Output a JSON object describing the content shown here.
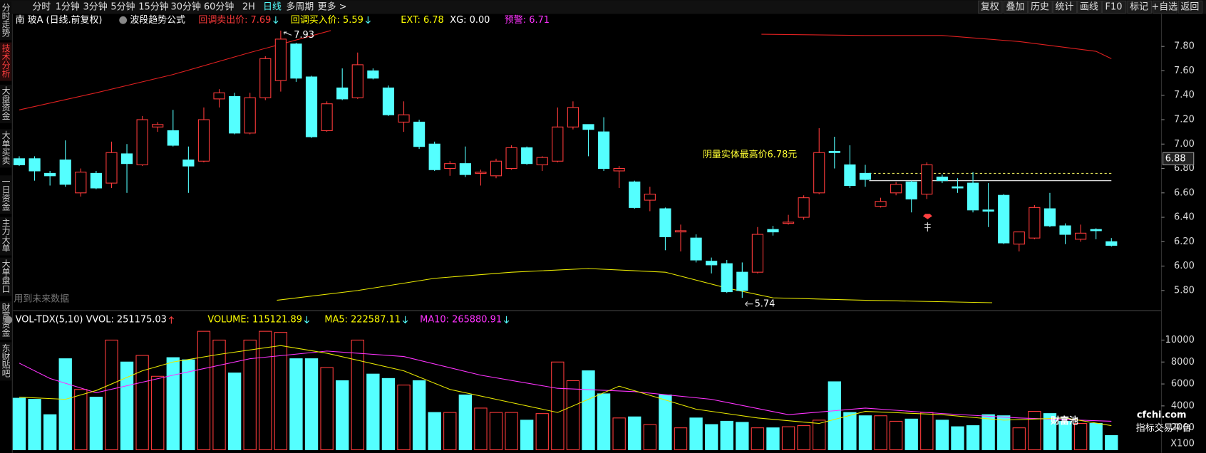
{
  "toolbar": {
    "tabs": [
      "分时",
      "1分钟",
      "3分钟",
      "5分钟",
      "15分钟",
      "30分钟",
      "60分钟",
      "2H",
      "日线",
      "多周期",
      "更多 >"
    ],
    "active": 8,
    "buttons": [
      "复权",
      "叠加",
      "历史",
      "统计",
      "画线",
      "F10",
      "标记",
      "+自选",
      "返回"
    ]
  },
  "sidebar": {
    "tabs": [
      "分时走势",
      "技术分析",
      "大盘资金",
      "大单买卖",
      "一日资金",
      "主力大单",
      "大单盘口",
      "财富资金",
      "东财贴吧"
    ],
    "active": 1
  },
  "price_header": {
    "stock": "南 玻A (日线.前复权)",
    "formula": "波段趋势公式",
    "items": [
      {
        "text": "回调卖出价: 7.69",
        "color": "#ff3b3b",
        "arrow": true
      },
      {
        "text": "回调买入价: 5.59",
        "color": "#ffff00",
        "arrow": true
      },
      {
        "text": "EXT: 6.78",
        "color": "#ffff00"
      },
      {
        "text": "XG: 0.00",
        "color": "#ffffff"
      },
      {
        "text": "预警: 6.71",
        "color": "#ff33ff"
      }
    ]
  },
  "volume_header": {
    "items": [
      {
        "text": "VOL-TDX(5,10) VVOL: 251175.03",
        "color": "#ffffff",
        "arrow": "up"
      },
      {
        "text": "VOLUME: 115121.89",
        "color": "#ffff00",
        "arrow": "down"
      },
      {
        "text": "MA5: 222587.11",
        "color": "#ffff00",
        "arrow": "down"
      },
      {
        "text": "MA10: 265880.91",
        "color": "#ff33ff",
        "arrow": "down"
      }
    ]
  },
  "watermark": {
    "brand": "财富池",
    "site": "cfchi.com",
    "slogan": "指标交易平台"
  },
  "chart_data": [
    {
      "type": "candlestick",
      "up_color": "#ff3b3b",
      "down_color": "#54ffff",
      "open": [
        6.88,
        6.88,
        6.76,
        6.87,
        6.6,
        6.76,
        6.68,
        6.92,
        6.83,
        7.14,
        7.11,
        6.87,
        6.86,
        7.37,
        7.39,
        7.09,
        7.38,
        7.52,
        7.82,
        7.55,
        7.11,
        7.46,
        7.38,
        7.6,
        7.46,
        7.18,
        7.18,
        7.0,
        6.8,
        6.84,
        6.76,
        6.74,
        6.8,
        6.97,
        6.83,
        6.86,
        7.14,
        7.16,
        7.1,
        6.78,
        6.69,
        6.54,
        6.47,
        6.28,
        6.23,
        6.04,
        6.02,
        5.95,
        5.95,
        6.3,
        6.35,
        6.4,
        6.6,
        6.94,
        6.83,
        6.76,
        6.49,
        6.6,
        6.69,
        6.59,
        6.73,
        6.65,
        6.68,
        6.46,
        6.58,
        6.18,
        6.23,
        6.47,
        6.33,
        6.22,
        6.3,
        6.2
      ],
      "high": [
        6.9,
        6.9,
        6.78,
        7.03,
        6.8,
        6.78,
        7.02,
        7.0,
        7.23,
        7.18,
        7.28,
        6.98,
        7.3,
        7.45,
        7.42,
        7.42,
        7.72,
        7.93,
        7.83,
        7.56,
        7.35,
        7.62,
        7.75,
        7.62,
        7.48,
        7.35,
        7.2,
        7.02,
        6.86,
        6.98,
        6.79,
        6.88,
        6.99,
        6.98,
        6.9,
        7.3,
        7.35,
        7.16,
        7.22,
        6.82,
        6.7,
        6.65,
        6.48,
        6.34,
        6.26,
        6.07,
        6.05,
        6.03,
        6.32,
        6.33,
        6.42,
        6.58,
        7.13,
        7.06,
        6.99,
        6.83,
        6.56,
        6.69,
        6.7,
        6.85,
        6.75,
        6.72,
        6.77,
        6.68,
        6.59,
        6.28,
        6.5,
        6.6,
        6.35,
        6.34,
        6.31,
        6.23
      ],
      "low": [
        6.82,
        6.7,
        6.66,
        6.65,
        6.57,
        6.63,
        6.64,
        6.6,
        6.82,
        7.1,
        6.98,
        6.6,
        6.85,
        7.3,
        7.08,
        7.08,
        7.36,
        7.43,
        7.51,
        7.05,
        7.1,
        7.36,
        7.37,
        7.53,
        7.23,
        7.1,
        6.96,
        6.78,
        6.74,
        6.73,
        6.66,
        6.72,
        6.79,
        6.83,
        6.78,
        6.85,
        7.12,
        6.9,
        6.78,
        6.64,
        6.47,
        6.45,
        6.13,
        6.12,
        6.03,
        5.94,
        5.78,
        5.74,
        5.94,
        6.25,
        6.34,
        6.38,
        6.59,
        6.8,
        6.64,
        6.65,
        6.48,
        6.58,
        6.44,
        6.55,
        6.68,
        6.6,
        6.44,
        6.32,
        6.18,
        6.12,
        6.22,
        6.32,
        6.18,
        6.2,
        6.22,
        6.16
      ],
      "close": [
        6.83,
        6.78,
        6.74,
        6.67,
        6.77,
        6.64,
        6.93,
        6.84,
        7.2,
        7.16,
        6.99,
        6.82,
        7.2,
        7.42,
        7.09,
        7.38,
        7.7,
        7.86,
        7.54,
        7.06,
        7.33,
        7.37,
        7.65,
        7.54,
        7.24,
        7.24,
        6.98,
        6.79,
        6.84,
        6.75,
        6.77,
        6.86,
        6.97,
        6.84,
        6.89,
        7.14,
        7.3,
        7.12,
        6.8,
        6.8,
        6.48,
        6.59,
        6.24,
        6.29,
        6.05,
        6.01,
        5.79,
        5.8,
        6.26,
        6.28,
        6.36,
        6.56,
        6.93,
        6.93,
        6.66,
        6.71,
        6.53,
        6.67,
        6.55,
        6.83,
        6.7,
        6.64,
        6.46,
        6.45,
        6.19,
        6.28,
        6.48,
        6.33,
        6.26,
        6.27,
        6.29,
        6.17
      ],
      "ylim": [
        5.66,
        7.94
      ],
      "yticks": [
        {
          "value": 7.8,
          "label": "7.80"
        },
        {
          "value": 7.6,
          "label": "7.60"
        },
        {
          "value": 7.4,
          "label": "7.40"
        },
        {
          "value": 7.2,
          "label": "7.20"
        },
        {
          "value": 7,
          "label": "7.00"
        },
        {
          "value": 6.8,
          "label": "6.80"
        },
        {
          "value": 6.6,
          "label": "6.60"
        },
        {
          "value": 6.4,
          "label": "6.40"
        },
        {
          "value": 6.2,
          "label": "6.20"
        },
        {
          "value": 6,
          "label": "6.00"
        },
        {
          "value": 5.8,
          "label": "5.80"
        }
      ],
      "overlays": [
        {
          "color": "#e02020",
          "x": [
            0,
            5,
            10,
            15,
            20.25
          ],
          "values": [
            7.28,
            7.42,
            7.57,
            7.75,
            7.93
          ]
        },
        {
          "color": "#e02020",
          "x": [
            48.25,
            55,
            60,
            65,
            70,
            71
          ],
          "values": [
            7.9,
            7.89,
            7.89,
            7.84,
            7.76,
            7.7
          ]
        },
        {
          "color": "#e8e800",
          "x": [
            16.75,
            22,
            27,
            32,
            37,
            42,
            46,
            49,
            55,
            63.25
          ],
          "values": [
            5.72,
            5.8,
            5.9,
            5.95,
            5.98,
            5.95,
            5.82,
            5.74,
            5.72,
            5.7
          ]
        }
      ],
      "levels": [
        {
          "value": 6.76,
          "color": "#ffff66",
          "dash": true,
          "from": 55.25,
          "to": 71
        },
        {
          "value": 6.7,
          "color": "#ffffff",
          "dash": false,
          "from": 55.25,
          "to": 71
        }
      ],
      "annotation": {
        "text": "阴量实体最高价6.78元",
        "x": 47.5,
        "y": 6.91,
        "color": "#ffff33"
      },
      "high_label": {
        "index": 17,
        "value": 7.93,
        "label": "7.93"
      },
      "low_label": {
        "index": 47,
        "value": 5.74,
        "label": "5.74"
      },
      "price_tag": {
        "value": 6.88,
        "label": "6.88"
      },
      "note": "用到未来数据"
    },
    {
      "type": "bar",
      "unit": "X100",
      "values": [
        4700,
        4600,
        3200,
        8300,
        5500,
        4800,
        10000,
        8000,
        8600,
        6700,
        8400,
        8200,
        10800,
        10000,
        7000,
        10000,
        10800,
        10700,
        8300,
        8300,
        7500,
        6300,
        10000,
        6900,
        6500,
        5900,
        6300,
        3400,
        3400,
        5000,
        3800,
        3400,
        3400,
        2700,
        3300,
        8000,
        6300,
        7200,
        5100,
        2900,
        3000,
        2300,
        5000,
        2000,
        2900,
        2300,
        2600,
        2500,
        2000,
        2000,
        2100,
        2200,
        2700,
        6200,
        3400,
        3100,
        3100,
        2600,
        2800,
        3400,
        2700,
        2100,
        2200,
        3200,
        3100,
        2000,
        3500,
        3300,
        2600,
        2400,
        2400,
        1300
      ],
      "ylim": [
        0,
        11000
      ],
      "yticks": [
        10000,
        8000,
        6000,
        4000,
        2000
      ],
      "overlays": [
        {
          "color": "#ff33ff",
          "x": [
            0,
            2,
            5,
            10,
            15,
            20,
            25,
            30,
            35,
            40,
            45,
            50,
            55,
            60,
            65,
            71
          ],
          "values": [
            7900,
            6500,
            5200,
            6800,
            8300,
            9000,
            8500,
            6800,
            5600,
            5300,
            4600,
            3200,
            3800,
            3300,
            2900,
            2600
          ]
        },
        {
          "color": "#e8e800",
          "x": [
            0,
            3,
            5,
            8,
            10,
            13,
            17,
            20,
            25,
            28,
            32,
            35,
            39,
            44,
            48,
            52,
            55,
            60,
            64,
            68,
            71
          ],
          "values": [
            4800,
            4600,
            5400,
            7200,
            8000,
            8700,
            9500,
            8800,
            7200,
            5500,
            4300,
            3400,
            5800,
            3700,
            2900,
            2400,
            3500,
            3200,
            2700,
            2900,
            2200
          ]
        }
      ]
    }
  ]
}
